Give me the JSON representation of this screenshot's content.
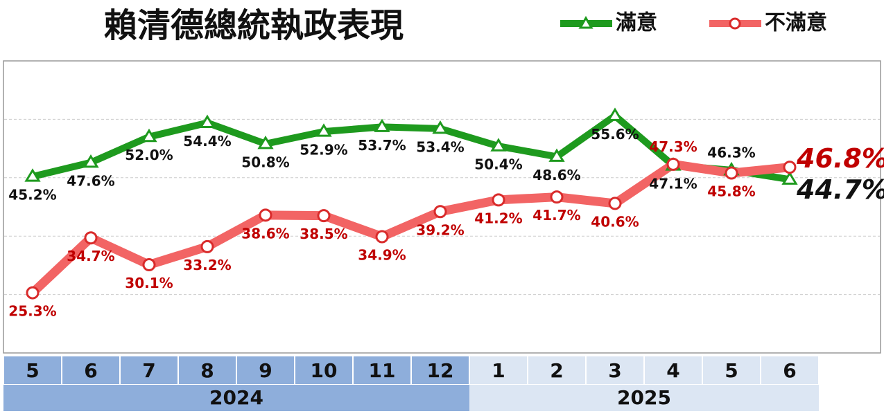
{
  "chart_data": {
    "type": "line",
    "title": "賴清德總統執政表現",
    "groups": [
      {
        "label": "2024",
        "categories": [
          "5",
          "6",
          "7",
          "8",
          "9",
          "10",
          "11",
          "12"
        ]
      },
      {
        "label": "2025",
        "categories": [
          "1",
          "2",
          "3",
          "4",
          "5",
          "6"
        ]
      }
    ],
    "series": [
      {
        "name": "滿意",
        "color": "#1e9a1e",
        "marker": "triangle",
        "values": [
          45.2,
          47.6,
          52.0,
          54.4,
          50.8,
          52.9,
          53.7,
          53.4,
          50.4,
          48.6,
          55.6,
          47.1,
          46.3,
          44.7
        ],
        "value_labels": [
          "45.2%",
          "47.6%",
          "52.0%",
          "54.4%",
          "50.8%",
          "52.9%",
          "53.7%",
          "53.4%",
          "50.4%",
          "48.6%",
          "55.6%",
          "47.1%",
          "46.3%",
          "44.7%"
        ]
      },
      {
        "name": "不滿意",
        "color": "#f26464",
        "marker": "circle",
        "values": [
          25.3,
          34.7,
          30.1,
          33.2,
          38.6,
          38.5,
          34.9,
          39.2,
          41.2,
          41.7,
          40.6,
          47.3,
          45.8,
          46.8
        ],
        "value_labels": [
          "25.3%",
          "34.7%",
          "30.1%",
          "33.2%",
          "38.6%",
          "38.5%",
          "34.9%",
          "39.2%",
          "41.2%",
          "41.7%",
          "40.6%",
          "47.3%",
          "45.8%",
          "46.8%"
        ]
      }
    ],
    "ylim": [
      15,
      65
    ],
    "yticks": [
      25,
      35,
      45,
      55
    ],
    "grid": true
  }
}
